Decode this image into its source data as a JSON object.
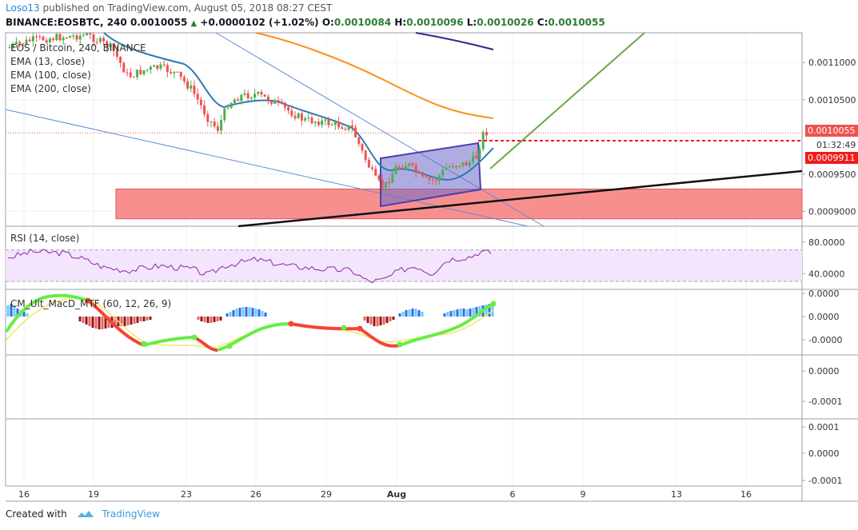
{
  "header": {
    "user": "Loso13",
    "published_text": "published on TradingView.com, August 05, 2018 08:27 CEST",
    "symbol_line": "BINANCE:EOSBTC, 240",
    "last": "0.0010055",
    "change": "+0.0000102 (+1.02%)",
    "o_label": "O:",
    "o_value": "0.0010084",
    "h_label": "H:",
    "h_value": "0.0010096",
    "l_label": "L:",
    "l_value": "0.0010026",
    "c_label": "C:",
    "c_value": "0.0010055"
  },
  "legend": {
    "title": "EOS / Bitcoin, 240, BINANCE",
    "ema13": "EMA (13, close)",
    "ema100": "EMA (100, close)",
    "ema200": "EMA (200, close)",
    "rsi": "RSI (14, close)",
    "macd": "CM_Ult_MacD_MTF (60, 12, 26, 9)"
  },
  "price_tags": {
    "last": "0.0010055",
    "countdown": "01:32:49",
    "level": "0.0009911"
  },
  "colors": {
    "ema13": "#2f7ab3",
    "ema100": "#f7931a",
    "ema200": "#2b2a90",
    "up_candle": "#4caf50",
    "down_candle": "#ef5350",
    "zone": "#f77b7b",
    "channel": "#6c6ac9",
    "trend_green": "#6aa84f",
    "rsi_line": "#8e24aa",
    "macd_green": "#66ee44",
    "macd_red": "#f44336",
    "signal": "#f5e663"
  },
  "chart_data": [
    {
      "type": "candlestick",
      "title": "EOS / Bitcoin, 240, BINANCE",
      "x_tick_labels": [
        "16",
        "19",
        "23",
        "26",
        "29",
        "Aug",
        "6",
        "9",
        "13",
        "16"
      ],
      "y_tick_labels": [
        "0.0011000",
        "0.0010500",
        "0.0009500",
        "0.0009000"
      ],
      "ylim": [
        0.00088,
        0.00114
      ],
      "approx_close_path": [
        {
          "date": "2018-07-16",
          "close": 0.00117
        },
        {
          "date": "2018-07-19",
          "close": 0.00114
        },
        {
          "date": "2018-07-21",
          "close": 0.0011
        },
        {
          "date": "2018-07-23",
          "close": 0.00106
        },
        {
          "date": "2018-07-24",
          "close": 0.00099
        },
        {
          "date": "2018-07-26",
          "close": 0.00105
        },
        {
          "date": "2018-07-29",
          "close": 0.00101
        },
        {
          "date": "2018-07-31",
          "close": 0.00092
        },
        {
          "date": "2018-08-01",
          "close": 0.00096
        },
        {
          "date": "2018-08-03",
          "close": 0.00094
        },
        {
          "date": "2018-08-04",
          "close": 0.00096
        },
        {
          "date": "2018-08-05",
          "close": 0.0010055
        }
      ],
      "support_zone": [
        0.00089,
        0.00093
      ],
      "level_line": 0.0009911,
      "last_price": 0.0010055
    },
    {
      "type": "line",
      "title": "RSI (14, close)",
      "y_tick_labels": [
        "80.0000",
        "40.0000"
      ],
      "ylim": [
        20,
        100
      ],
      "band": [
        30,
        70
      ]
    },
    {
      "type": "histogram",
      "title": "CM_Ult_MacD_MTF (60, 12, 26, 9)",
      "y_tick_labels": [
        "0.0000",
        "0.0000",
        "-0.0000"
      ]
    },
    {
      "type": "blank",
      "y_tick_labels": [
        "0.0000",
        "-0.0001"
      ]
    },
    {
      "type": "blank",
      "y_tick_labels": [
        "0.0001",
        "0.0000",
        "-0.0001"
      ]
    }
  ],
  "footer": {
    "created_with": "Created with",
    "brand": "TradingView"
  }
}
